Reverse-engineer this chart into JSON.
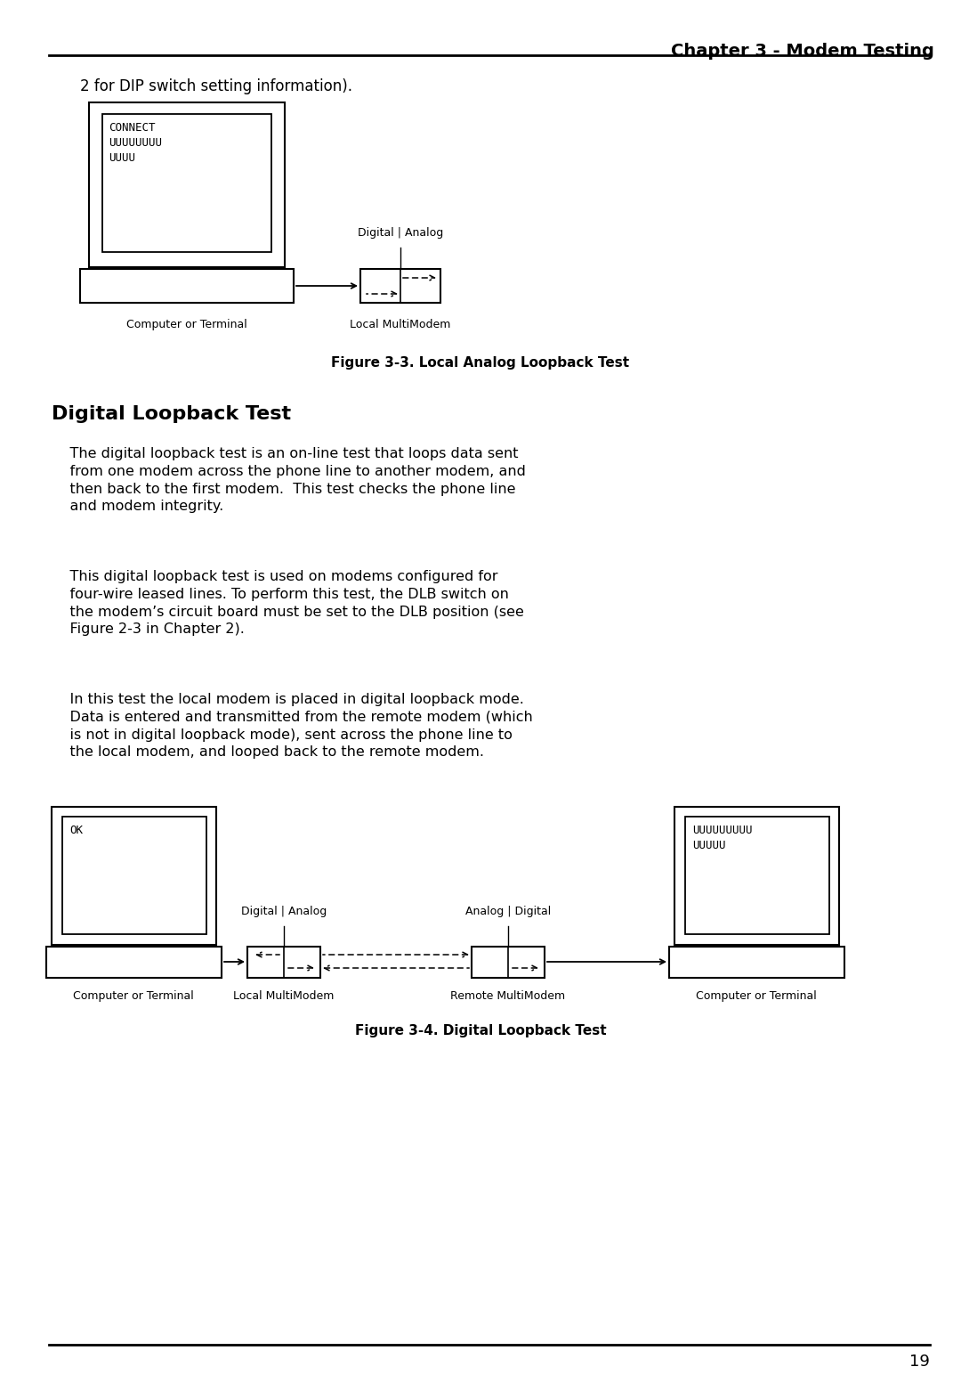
{
  "title": "Chapter 3 - Modem Testing",
  "page_number": "19",
  "bg_color": "#ffffff",
  "text_color": "#000000",
  "intro_text": "2 for DIP switch setting information).",
  "section_title": "Digital Loopback Test",
  "para1": "    The digital loopback test is an on-line test that loops data sent\n    from one modem across the phone line to another modem, and\n    then back to the first modem.  This test checks the phone line\n    and modem integrity.",
  "para2": "    This digital loopback test is used on modems configured for\n    four-wire leased lines. To perform this test, the DLB switch on\n    the modem’s circuit board must be set to the DLB position (see\n    Figure 2-3 in Chapter 2).",
  "para3": "    In this test the local modem is placed in digital loopback mode.\n    Data is entered and transmitted from the remote modem (which\n    is not in digital loopback mode), sent across the phone line to\n    the local modem, and looped back to the remote modem.",
  "fig3_caption": "Figure 3-3. Local Analog Loopback Test",
  "fig4_caption": "Figure 3-4. Digital Loopback Test",
  "fig3_screen_text": "CONNECT\nUUUUUUUU\nUUUU",
  "fig4_screen_left": "OK",
  "fig4_screen_right": "UUUUUUUUU\nUUUUU",
  "label_comp_terminal": "Computer or Terminal",
  "label_local_multimodem": "Local MultiModem",
  "label_remote_multimodem": "Remote MultiModem",
  "label_digital_analog": "Digital | Analog",
  "label_analog_digital": "Analog | Digital"
}
